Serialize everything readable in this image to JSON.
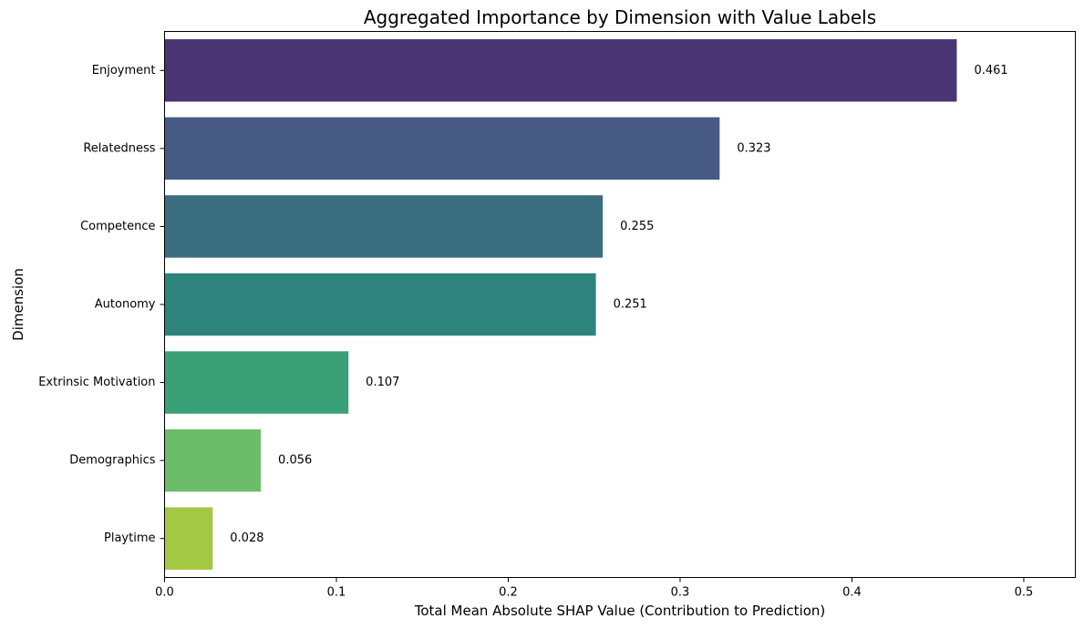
{
  "chart_data": {
    "type": "bar",
    "orientation": "horizontal",
    "title": "Aggregated Importance by Dimension with Value Labels",
    "xlabel": "Total Mean Absolute SHAP Value (Contribution to Prediction)",
    "ylabel": "Dimension",
    "categories": [
      "Enjoyment",
      "Relatedness",
      "Competence",
      "Autonomy",
      "Extrinsic Motivation",
      "Demographics",
      "Playtime"
    ],
    "values": [
      0.461,
      0.323,
      0.255,
      0.251,
      0.107,
      0.056,
      0.028
    ],
    "value_labels": [
      "0.461",
      "0.323",
      "0.255",
      "0.251",
      "0.107",
      "0.056",
      "0.028"
    ],
    "colors": [
      "#4a3574",
      "#465a84",
      "#3a6e80",
      "#2e837c",
      "#3aa078",
      "#6cbd6a",
      "#a3c844"
    ],
    "xlim": [
      0,
      0.53
    ],
    "xticks": [
      0,
      0.1,
      0.2,
      0.3,
      0.4,
      0.5
    ],
    "xtick_labels": [
      "0.0",
      "0.1",
      "0.2",
      "0.3",
      "0.4",
      "0.5"
    ],
    "grid": false,
    "legend": false
  }
}
